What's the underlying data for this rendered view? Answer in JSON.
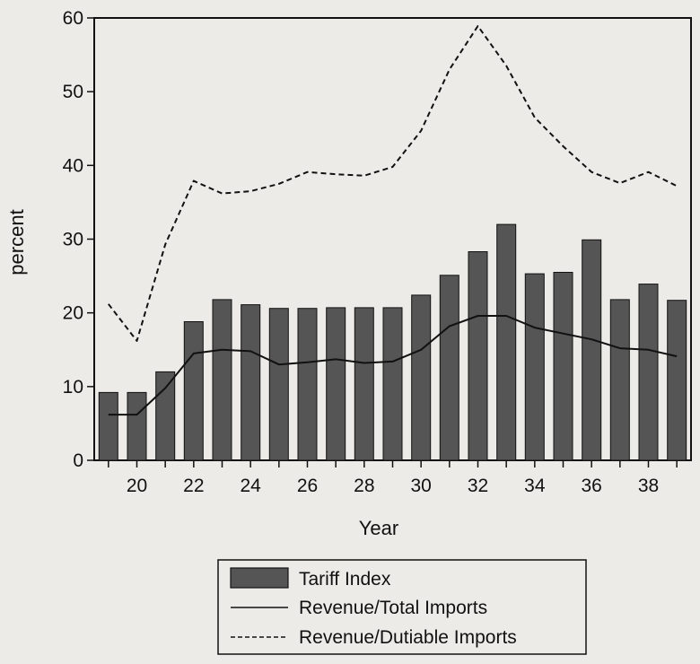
{
  "chart_data": {
    "type": "bar",
    "xlabel": "Year",
    "ylabel": "percent",
    "ylim": [
      0,
      60
    ],
    "xlim": [
      18.5,
      39.5
    ],
    "yticks": [
      0,
      10,
      20,
      30,
      40,
      50,
      60
    ],
    "xticks": [
      20,
      22,
      24,
      26,
      28,
      30,
      32,
      34,
      36,
      38
    ],
    "x": [
      19,
      20,
      21,
      22,
      23,
      24,
      25,
      26,
      27,
      28,
      29,
      30,
      31,
      32,
      33,
      34,
      35,
      36,
      37,
      38,
      39
    ],
    "series": [
      {
        "name": "Tariff Index",
        "kind": "bar",
        "color": "#555555",
        "values": [
          9.2,
          9.2,
          12.0,
          18.8,
          21.8,
          21.1,
          20.6,
          20.6,
          20.7,
          20.7,
          20.7,
          22.4,
          25.1,
          28.3,
          32.0,
          25.3,
          25.5,
          29.9,
          21.8,
          23.9,
          21.7
        ]
      },
      {
        "name": "Revenue/Total Imports",
        "kind": "line",
        "style": "solid",
        "values": [
          6.2,
          6.2,
          9.8,
          14.5,
          15.0,
          14.8,
          13.0,
          13.3,
          13.7,
          13.2,
          13.4,
          15.0,
          18.2,
          19.6,
          19.6,
          18.0,
          17.2,
          16.4,
          15.2,
          15.0,
          14.1
        ]
      },
      {
        "name": "Revenue/Dutiable Imports",
        "kind": "line",
        "style": "dashed",
        "values": [
          21.2,
          16.2,
          29.3,
          37.9,
          36.2,
          36.5,
          37.5,
          39.1,
          38.8,
          38.6,
          39.8,
          44.7,
          53.0,
          58.9,
          53.5,
          46.5,
          42.6,
          39.1,
          37.6,
          39.1,
          37.2
        ]
      }
    ],
    "grid": false,
    "legend": "bottom"
  }
}
